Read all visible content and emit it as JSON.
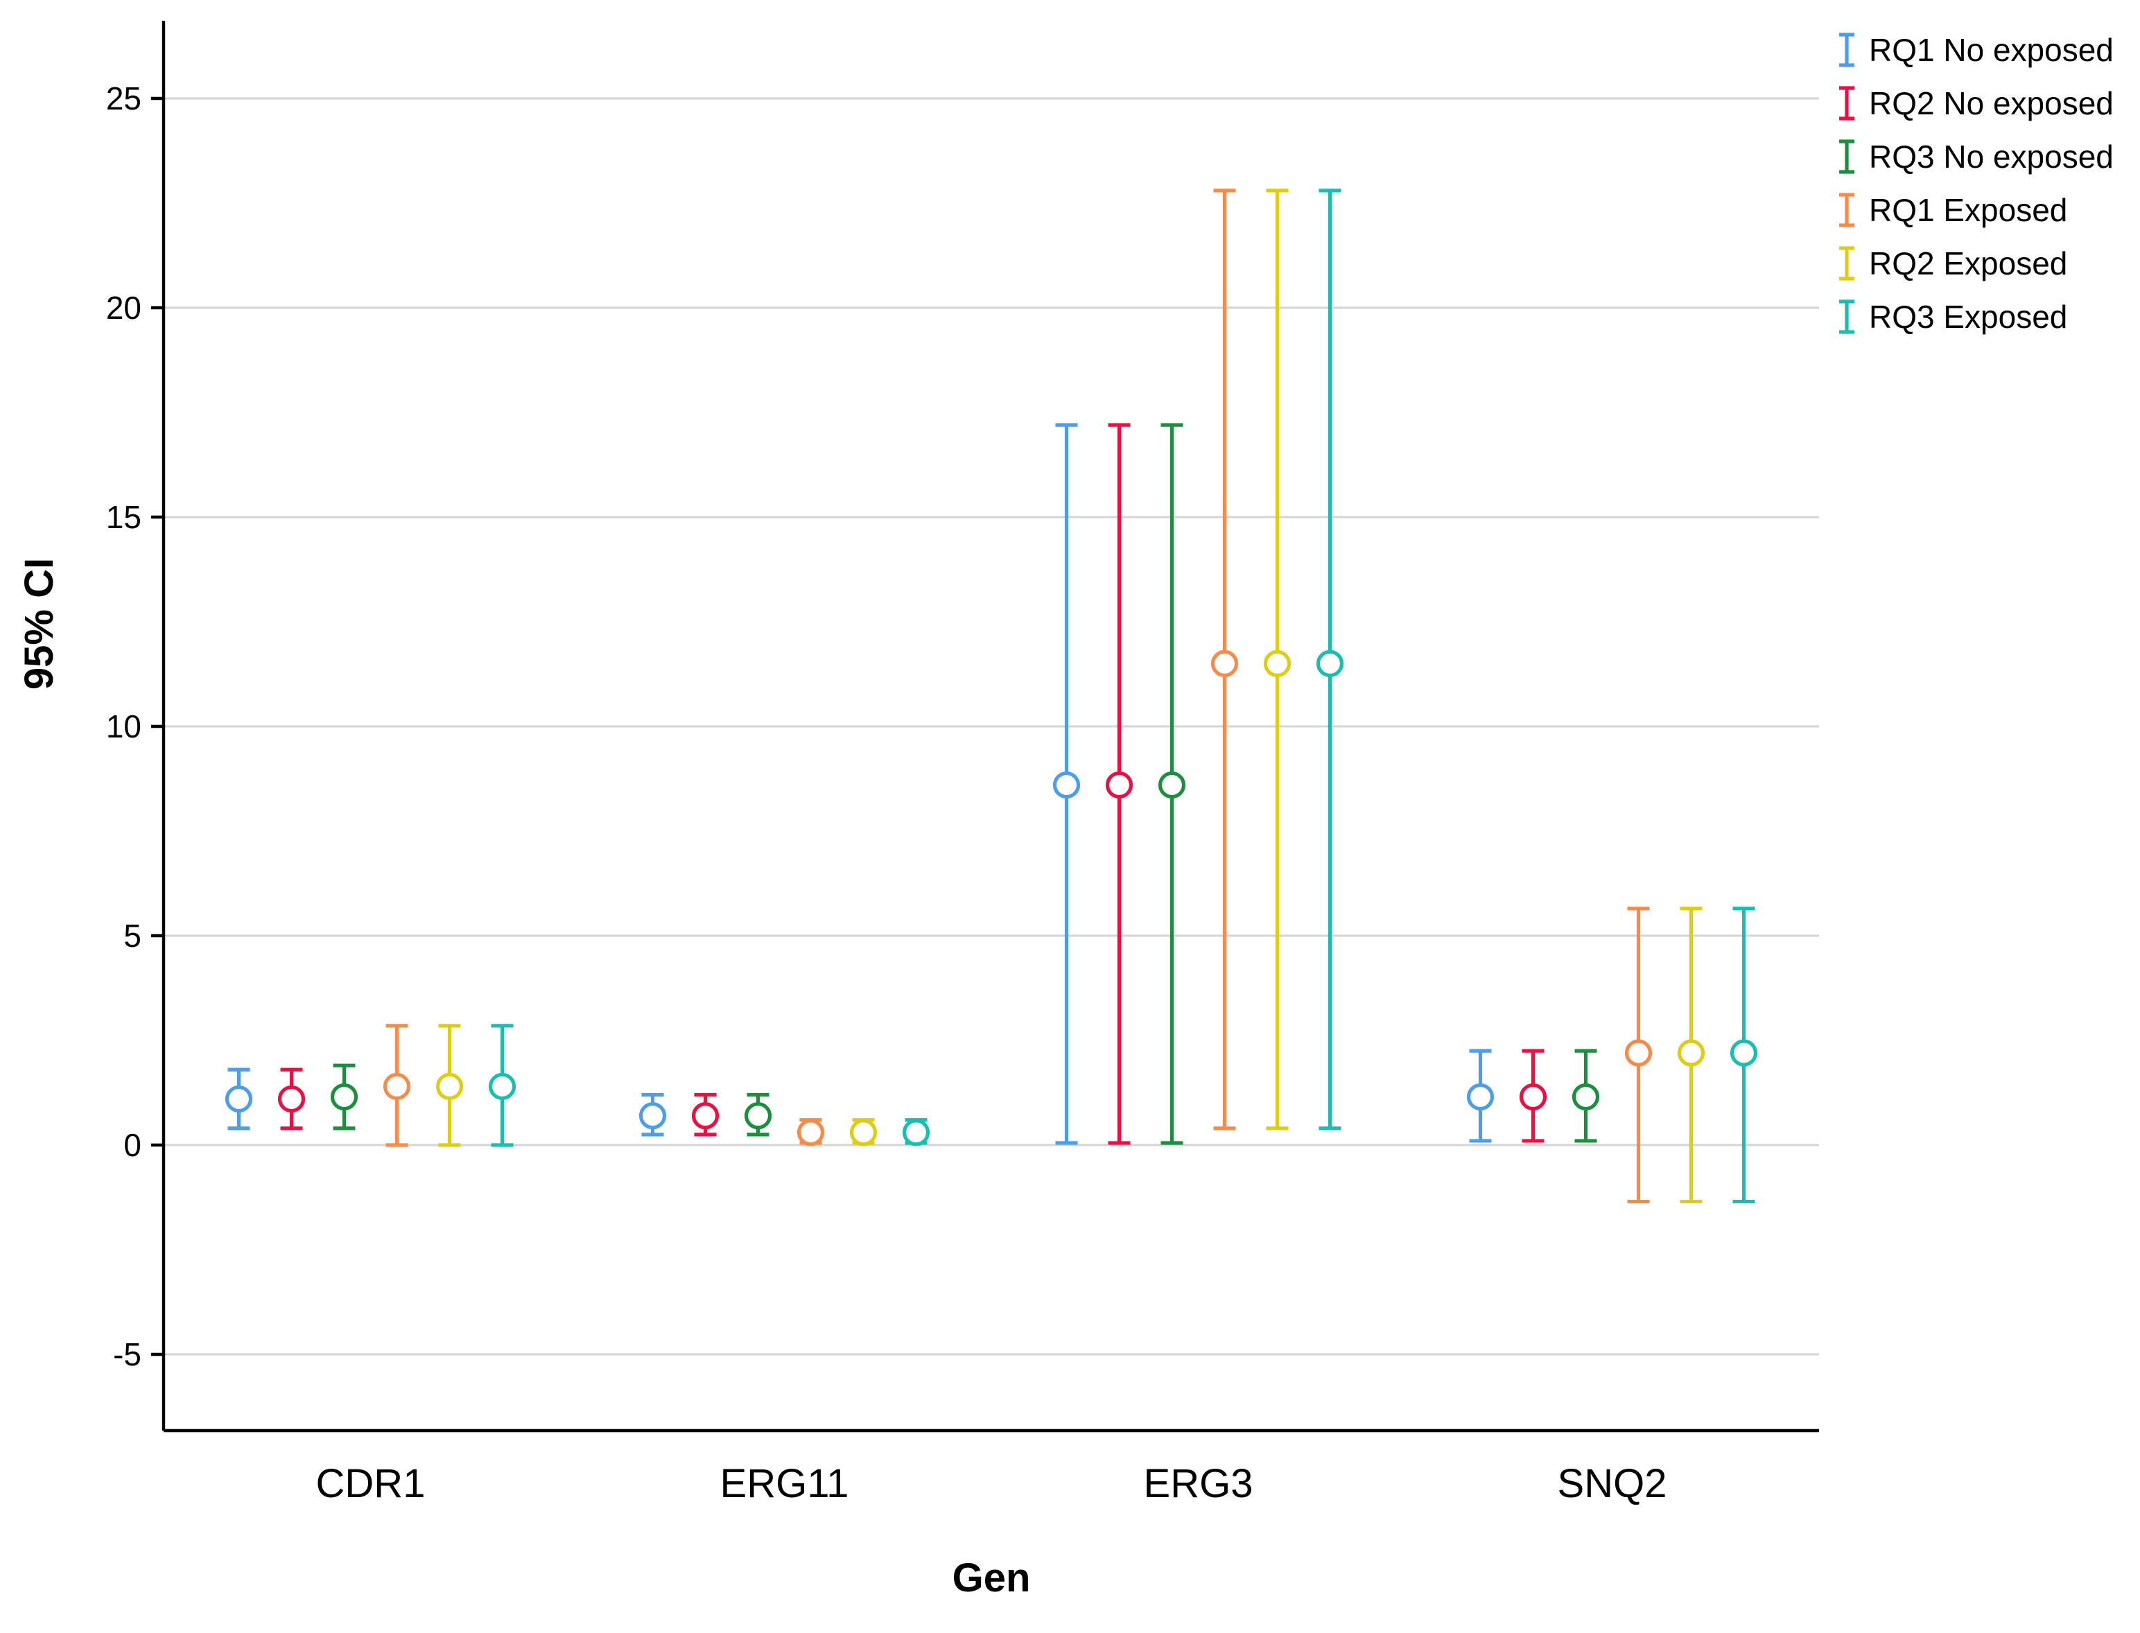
{
  "chart_data": {
    "type": "errorbar",
    "title": "",
    "xlabel": "Gen",
    "ylabel": "95% CI",
    "categories": [
      "CDR1",
      "ERG11",
      "ERG3",
      "SNQ2"
    ],
    "yticks": [
      -5,
      0,
      5,
      10,
      15,
      20,
      25
    ],
    "ylim": [
      -6.8,
      26.8
    ],
    "grid": true,
    "legend_position": "top-right",
    "gridline_color": "#d6d6d6",
    "axis_color": "#000000",
    "series": [
      {
        "name": "RQ1 No exposed",
        "color": "#4e9de8",
        "means": [
          1.1,
          0.7,
          8.6,
          1.15
        ],
        "low": [
          0.4,
          0.25,
          0.05,
          0.1
        ],
        "high": [
          1.8,
          1.2,
          17.2,
          2.25
        ]
      },
      {
        "name": "RQ2 No exposed",
        "color": "#ea1044",
        "means": [
          1.1,
          0.7,
          8.6,
          1.15
        ],
        "low": [
          0.4,
          0.25,
          0.05,
          0.1
        ],
        "high": [
          1.8,
          1.2,
          17.2,
          2.25
        ]
      },
      {
        "name": "RQ3 No exposed",
        "color": "#1b8f3e",
        "means": [
          1.15,
          0.7,
          8.6,
          1.15
        ],
        "low": [
          0.4,
          0.25,
          0.05,
          0.1
        ],
        "high": [
          1.9,
          1.2,
          17.2,
          2.25
        ]
      },
      {
        "name": "RQ1 Exposed",
        "color": "#f68b4a",
        "means": [
          1.4,
          0.3,
          11.5,
          2.2
        ],
        "low": [
          0.0,
          0.05,
          0.4,
          -1.35
        ],
        "high": [
          2.85,
          0.6,
          22.8,
          5.65
        ]
      },
      {
        "name": "RQ2 Exposed",
        "color": "#ddcd15",
        "means": [
          1.4,
          0.3,
          11.5,
          2.2
        ],
        "low": [
          0.0,
          0.05,
          0.4,
          -1.35
        ],
        "high": [
          2.85,
          0.6,
          22.8,
          5.65
        ]
      },
      {
        "name": "RQ3 Exposed",
        "color": "#1abdb2",
        "means": [
          1.4,
          0.3,
          11.5,
          2.2
        ],
        "low": [
          0.0,
          0.05,
          0.4,
          -1.35
        ],
        "high": [
          2.85,
          0.6,
          22.8,
          5.65
        ]
      }
    ]
  }
}
